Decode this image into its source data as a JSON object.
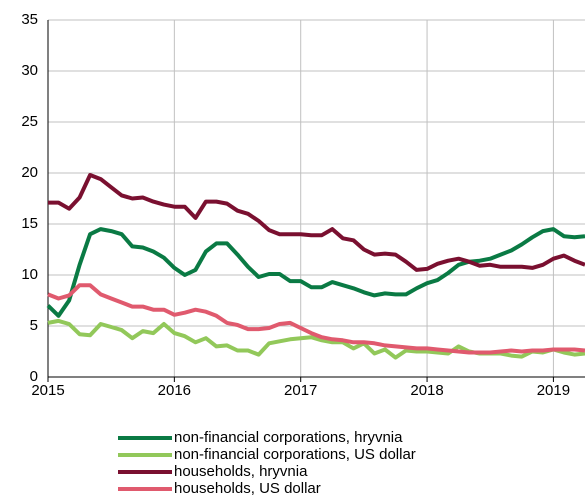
{
  "chart_data": {
    "type": "line",
    "x": [
      2015,
      2015.083,
      2015.167,
      2015.25,
      2015.333,
      2015.417,
      2015.5,
      2015.583,
      2015.667,
      2015.75,
      2015.833,
      2015.917,
      2016,
      2016.083,
      2016.167,
      2016.25,
      2016.333,
      2016.417,
      2016.5,
      2016.583,
      2016.667,
      2016.75,
      2016.833,
      2016.917,
      2017,
      2017.083,
      2017.167,
      2017.25,
      2017.333,
      2017.417,
      2017.5,
      2017.583,
      2017.667,
      2017.75,
      2017.833,
      2017.917,
      2018,
      2018.083,
      2018.167,
      2018.25,
      2018.333,
      2018.417,
      2018.5,
      2018.583,
      2018.667,
      2018.75,
      2018.833,
      2018.917,
      2019,
      2019.083,
      2019.167,
      2019.25
    ],
    "series": [
      {
        "name": "non-financial corporations, hryvnia",
        "color": "#0a7a44",
        "values": [
          7,
          6,
          7.5,
          11,
          14,
          14.5,
          14.3,
          14,
          12.8,
          12.7,
          12.3,
          11.7,
          10.7,
          10,
          10.5,
          12.3,
          13.1,
          13.1,
          12,
          10.8,
          9.8,
          10.1,
          10.1,
          9.4,
          9.4,
          8.8,
          8.8,
          9.3,
          9,
          8.7,
          8.3,
          8,
          8.2,
          8.1,
          8.1,
          8.7,
          9.2,
          9.5,
          10.2,
          11,
          11.3,
          11.4,
          11.6,
          12,
          12.4,
          13,
          13.7,
          14.3,
          14.5,
          13.8,
          13.7,
          13.8
        ]
      },
      {
        "name": "non-financial corporations, US dollar",
        "color": "#92c85a",
        "values": [
          5.3,
          5.5,
          5.2,
          4.2,
          4.1,
          5.2,
          4.9,
          4.6,
          3.8,
          4.5,
          4.3,
          5.2,
          4.3,
          4,
          3.4,
          3.8,
          3,
          3.1,
          2.6,
          2.6,
          2.2,
          3.3,
          3.5,
          3.7,
          3.8,
          3.9,
          3.6,
          3.4,
          3.4,
          2.8,
          3.3,
          2.3,
          2.7,
          1.9,
          2.6,
          2.5,
          2.5,
          2.4,
          2.3,
          3,
          2.5,
          2.3,
          2.3,
          2.3,
          2.1,
          2,
          2.5,
          2.4,
          2.7,
          2.4,
          2.2,
          2.3
        ]
      },
      {
        "name": "households, hryvnia",
        "color": "#7a1030",
        "values": [
          17.1,
          17.1,
          16.5,
          17.6,
          19.8,
          19.4,
          18.6,
          17.8,
          17.5,
          17.6,
          17.2,
          16.9,
          16.7,
          16.7,
          15.6,
          17.2,
          17.2,
          17,
          16.3,
          16,
          15.3,
          14.4,
          14,
          14,
          14,
          13.9,
          13.9,
          14.5,
          13.6,
          13.4,
          12.5,
          12,
          12.1,
          12,
          11.3,
          10.5,
          10.6,
          11.1,
          11.4,
          11.6,
          11.3,
          10.9,
          11,
          10.8,
          10.8,
          10.8,
          10.7,
          11,
          11.6,
          11.9,
          11.4,
          11
        ]
      },
      {
        "name": "households, US dollar",
        "color": "#e05a6e",
        "values": [
          8.1,
          7.7,
          8,
          9,
          9,
          8.1,
          7.7,
          7.3,
          6.9,
          6.9,
          6.6,
          6.6,
          6.1,
          6.3,
          6.6,
          6.4,
          6,
          5.3,
          5.1,
          4.7,
          4.7,
          4.8,
          5.2,
          5.3,
          4.8,
          4.3,
          3.9,
          3.7,
          3.6,
          3.4,
          3.4,
          3.3,
          3.1,
          3,
          2.9,
          2.8,
          2.8,
          2.7,
          2.6,
          2.5,
          2.4,
          2.4,
          2.4,
          2.5,
          2.6,
          2.5,
          2.6,
          2.6,
          2.7,
          2.7,
          2.7,
          2.6
        ]
      }
    ],
    "xlim": [
      2015,
      2019.25
    ],
    "xticks": [
      2015,
      2016,
      2017,
      2018,
      2019
    ],
    "ylim": [
      0,
      35
    ],
    "yticks": [
      0,
      5,
      10,
      15,
      20,
      25,
      30,
      35
    ],
    "grid": true,
    "legend": "bottom"
  }
}
